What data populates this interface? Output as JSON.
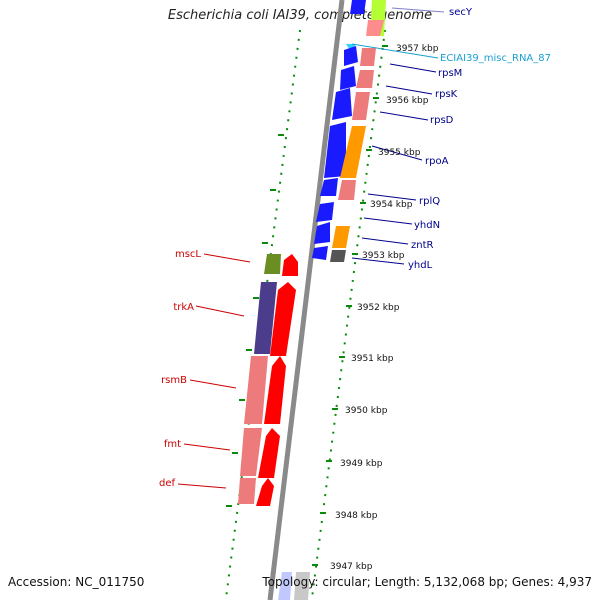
{
  "title": "Escherichia coli IAI39, complete genome",
  "footer": {
    "accession": "Accession: NC_011750",
    "topology": "Topology: circular; Length: 5,132,068 bp; Genes: 4,937"
  },
  "colors": {
    "backbone": "#8a8a8a",
    "tick": "#0a8a0a",
    "right_label": "#00008b",
    "left_label": "#cc0000",
    "rna_label": "#1aa0d0"
  },
  "kbp_labels": [
    "3957 kbp",
    "3956 kbp",
    "3955 kbp",
    "3954 kbp",
    "3953 kbp",
    "3952 kbp",
    "3951 kbp",
    "3950 kbp",
    "3949 kbp",
    "3948 kbp",
    "3947 kbp"
  ],
  "right_genes": [
    "secY",
    "ECIAI39_misc_RNA_87",
    "rpsM",
    "rpsK",
    "rpsD",
    "rpoA",
    "rplQ",
    "yhdN",
    "zntR",
    "yhdL"
  ],
  "left_genes": [
    "mscL",
    "trkA",
    "rsmB",
    "fmt",
    "def"
  ]
}
